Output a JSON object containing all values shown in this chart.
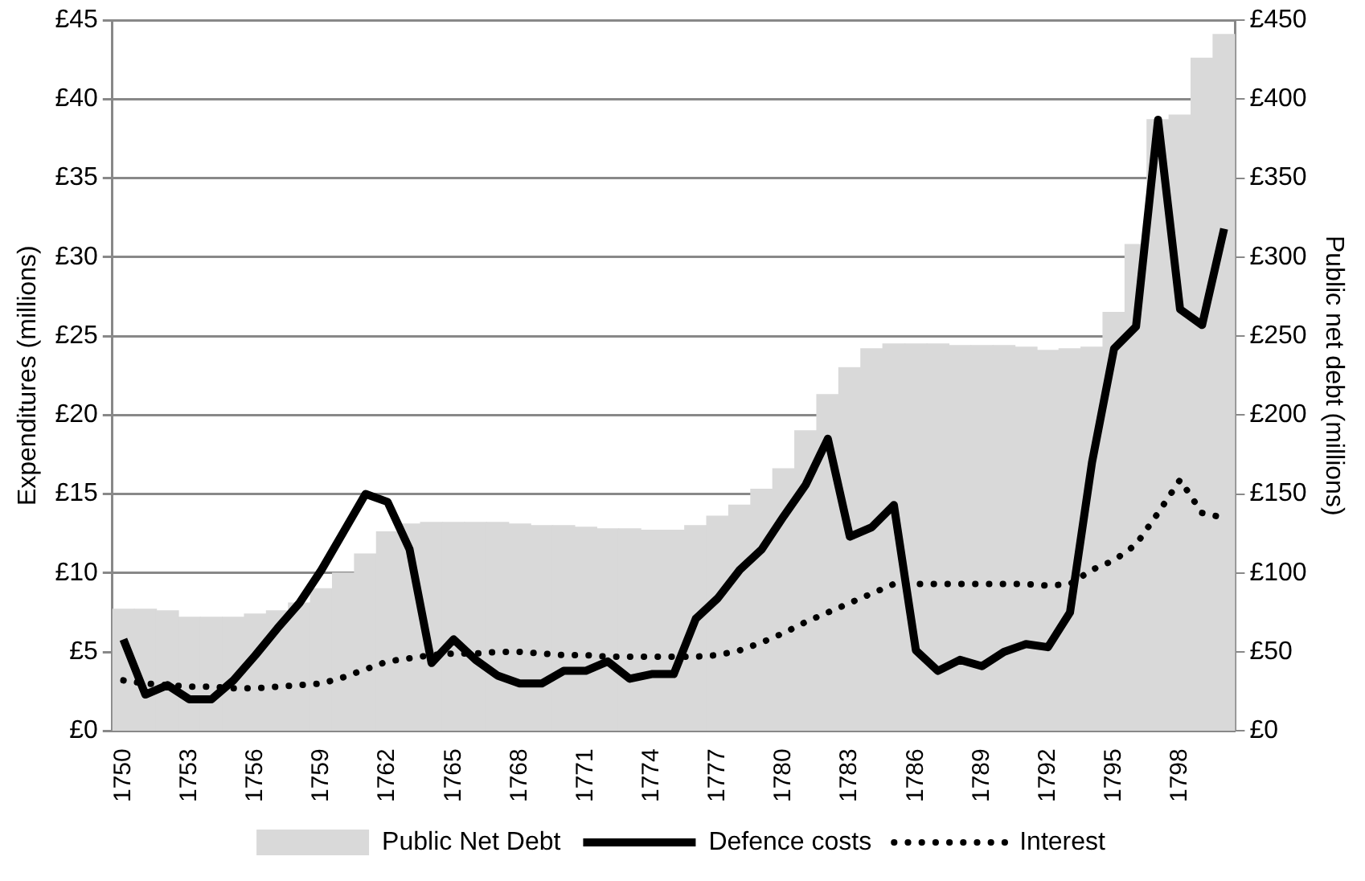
{
  "chart_data": {
    "type": "bar",
    "xlabel": null,
    "ylabel": "Expenditures (millions)",
    "y2label": "Public net debt (millions)",
    "categories": [
      "1750",
      null,
      null,
      "1753",
      null,
      null,
      "1756",
      null,
      null,
      "1759",
      null,
      null,
      "1762",
      null,
      null,
      "1765",
      null,
      null,
      "1768",
      null,
      null,
      "1771",
      null,
      null,
      "1774",
      null,
      null,
      "1777",
      null,
      null,
      "1780",
      null,
      null,
      "1783",
      null,
      null,
      "1786",
      null,
      null,
      "1789",
      null,
      null,
      "1792",
      null,
      null,
      "1795",
      null,
      null,
      "1798",
      null,
      null
    ],
    "series": [
      {
        "name": "Public Net Debt",
        "axis": "y2",
        "color": "#d9d9d9",
        "values": [
          77,
          77,
          76,
          72,
          72,
          72,
          74,
          76,
          81,
          90,
          100,
          112,
          126,
          131,
          132,
          132,
          132,
          132,
          131,
          130,
          130,
          129,
          128,
          128,
          127,
          127,
          130,
          136,
          143,
          153,
          166,
          190,
          213,
          230,
          242,
          245,
          245,
          245,
          244,
          244,
          244,
          243,
          241,
          242,
          243,
          265,
          308,
          387,
          390,
          426,
          441
        ]
      },
      {
        "name": "Defence costs",
        "type": "line",
        "color": "#000000",
        "line_style": "solid",
        "values": [
          5.8,
          2.3,
          2.9,
          2.0,
          2.0,
          3.2,
          4.8,
          6.5,
          8.1,
          10.2,
          12.6,
          15.0,
          14.5,
          11.5,
          4.3,
          5.8,
          4.5,
          3.5,
          3.0,
          3.0,
          3.8,
          3.8,
          4.4,
          3.3,
          3.6,
          3.6,
          7.1,
          8.4,
          10.2,
          11.5,
          13.6,
          15.6,
          18.5,
          12.3,
          12.9,
          14.3,
          5.1,
          3.8,
          4.5,
          4.1,
          5.0,
          5.5,
          5.3,
          7.5,
          17.0,
          24.2,
          25.6,
          38.7,
          26.7,
          25.7,
          31.8
        ]
      },
      {
        "name": "Interest",
        "type": "line",
        "color": "#000000",
        "line_style": "dotted",
        "values": [
          3.2,
          3.0,
          2.9,
          2.8,
          2.8,
          2.7,
          2.7,
          2.8,
          2.9,
          3.0,
          3.4,
          3.9,
          4.4,
          4.6,
          4.8,
          4.9,
          4.9,
          5.0,
          5.0,
          4.9,
          4.8,
          4.8,
          4.7,
          4.7,
          4.7,
          4.7,
          4.7,
          4.8,
          5.1,
          5.6,
          6.2,
          6.9,
          7.5,
          8.1,
          8.7,
          9.3,
          9.3,
          9.3,
          9.3,
          9.3,
          9.3,
          9.3,
          9.2,
          9.3,
          10.2,
          10.8,
          11.8,
          13.8,
          15.9,
          13.8,
          13.5
        ]
      }
    ],
    "ylim": [
      0,
      45
    ],
    "yticks": [
      {
        "value": 0,
        "label": "£0"
      },
      {
        "value": 5,
        "label": "£5"
      },
      {
        "value": 10,
        "label": "£10"
      },
      {
        "value": 15,
        "label": "£15"
      },
      {
        "value": 20,
        "label": "£20"
      },
      {
        "value": 25,
        "label": "£25"
      },
      {
        "value": 30,
        "label": "£30"
      },
      {
        "value": 35,
        "label": "£35"
      },
      {
        "value": 40,
        "label": "£40"
      },
      {
        "value": 45,
        "label": "£45"
      }
    ],
    "y2lim": [
      0,
      450
    ],
    "y2ticks": [
      {
        "value": 0,
        "label": "£0"
      },
      {
        "value": 50,
        "label": "£50"
      },
      {
        "value": 100,
        "label": "£100"
      },
      {
        "value": 150,
        "label": "£150"
      },
      {
        "value": 200,
        "label": "£200"
      },
      {
        "value": 250,
        "label": "£250"
      },
      {
        "value": 300,
        "label": "£300"
      },
      {
        "value": 350,
        "label": "£350"
      },
      {
        "value": 400,
        "label": "£400"
      },
      {
        "value": 450,
        "label": "£450"
      }
    ],
    "grid": "y",
    "legend": "bottom"
  }
}
